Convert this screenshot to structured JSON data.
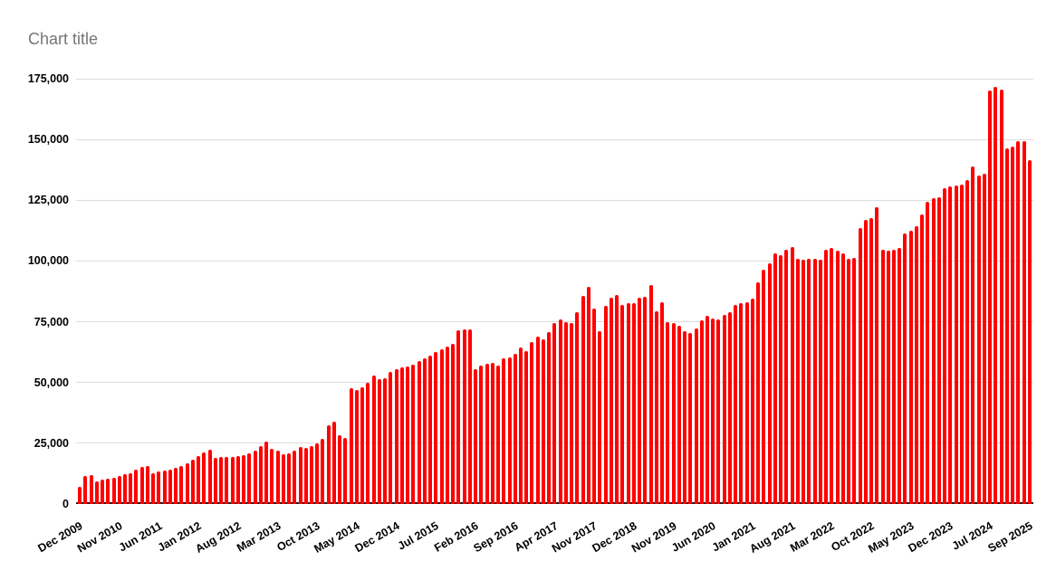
{
  "title": "Chart title",
  "colors": {
    "bar": "#ff0000",
    "gridline": "#dcdcdc",
    "axis_line": "#212121",
    "title_text": "#757575",
    "axis_label_text": "#000000",
    "background": "#ffffff"
  },
  "chart_data": {
    "type": "bar",
    "title": "Chart title",
    "xlabel": "",
    "ylabel": "",
    "grid": true,
    "legend": false,
    "ylim": [
      0,
      175000
    ],
    "y_axis": {
      "min": 0,
      "max": 175000,
      "tick_interval": 25000,
      "tick_values": [
        175000,
        150000,
        125000,
        100000,
        75000,
        50000,
        25000,
        0
      ],
      "tick_labels": [
        "175,000",
        "150,000",
        "125,000",
        "100,000",
        "75,000",
        "50,000",
        "25,000",
        "0"
      ]
    },
    "x_axis": {
      "tick_positions": [
        0,
        7,
        14,
        21,
        28,
        35,
        42,
        49,
        56,
        63,
        70,
        77,
        84,
        91,
        98,
        105,
        112,
        119,
        126,
        133,
        140,
        147,
        154,
        161,
        168
      ],
      "tick_labels": [
        "Dec 2009",
        "Nov 2010",
        "Jun 2011",
        "Jan 2012",
        "Aug 2012",
        "Mar 2013",
        "Oct 2013",
        "May 2014",
        "Dec 2014",
        "Jul 2015",
        "Feb 2016",
        "Sep 2016",
        "Apr 2017",
        "Nov 2017",
        "Dec 2018",
        "Nov 2019",
        "Jun 2020",
        "Jan 2021",
        "Aug 2021",
        "Mar 2022",
        "Oct 2022",
        "May 2023",
        "Dec 2023",
        "Jul 2024",
        "Sep 2025"
      ]
    },
    "values": [
      7200,
      11700,
      12100,
      9300,
      10000,
      10500,
      10900,
      11400,
      12200,
      12800,
      14000,
      15200,
      15800,
      12800,
      13300,
      13800,
      14200,
      14900,
      15700,
      16600,
      18300,
      19800,
      21200,
      22300,
      19000,
      19300,
      19500,
      19300,
      19600,
      20000,
      20800,
      21800,
      23900,
      25800,
      22900,
      21900,
      20600,
      20900,
      22100,
      23400,
      23000,
      24000,
      24800,
      26800,
      32500,
      33800,
      28400,
      27200,
      47600,
      46900,
      47900,
      49800,
      52900,
      51400,
      51900,
      54400,
      55400,
      56400,
      56700,
      57300,
      59000,
      60000,
      61200,
      62400,
      63500,
      64700,
      66000,
      71500,
      72000,
      71700,
      55400,
      56900,
      57700,
      58200,
      56900,
      59800,
      60200,
      62000,
      64300,
      63000,
      66800,
      69000,
      67800,
      70800,
      74500,
      75800,
      74900,
      74300,
      79100,
      85600,
      89400,
      80600,
      71100,
      81600,
      85000,
      86200,
      81800,
      82500,
      82800,
      85000,
      85400,
      90000,
      79300,
      83100,
      74900,
      74300,
      73300,
      71100,
      70400,
      72400,
      75500,
      77400,
      76200,
      75800,
      77800,
      79100,
      82100,
      82500,
      83100,
      84600,
      91300,
      96400,
      99000,
      103100,
      102300,
      104600,
      105600,
      101000,
      100500,
      100800,
      101000,
      100500,
      104800,
      105200,
      104300,
      103200,
      100900,
      101300,
      113500,
      116800,
      117700,
      122100,
      104700,
      104200,
      104500,
      105500,
      111400,
      112600,
      114500,
      119300,
      124500,
      126000,
      126300,
      130000,
      130800,
      131200,
      131600,
      133200,
      138800,
      135200,
      135800,
      170300,
      171800,
      170600,
      146200,
      147000,
      149200,
      149500,
      141500
    ]
  }
}
